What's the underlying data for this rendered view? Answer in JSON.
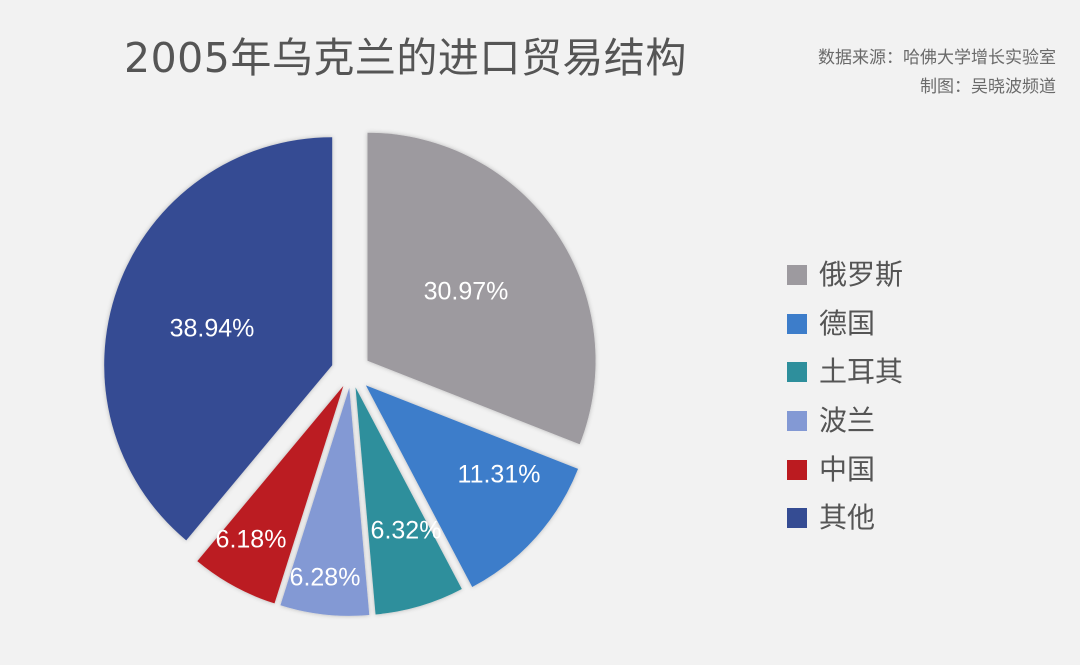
{
  "header": {
    "title": "2005年乌克兰的进口贸易结构",
    "source_line": "数据来源：哈佛大学增长实验室",
    "credit_line": "制图：吴晓波频道"
  },
  "chart_data": {
    "type": "pie",
    "title": "2005年乌克兰的进口贸易结构",
    "exploded": true,
    "start_angle_deg": 0,
    "direction": "clockwise",
    "legend_position": "right",
    "slices": [
      {
        "name": "俄罗斯",
        "value": 30.97,
        "label": "30.97%",
        "color": "#9d9a9f"
      },
      {
        "name": "德国",
        "value": 11.31,
        "label": "11.31%",
        "color": "#3d7dca"
      },
      {
        "name": "土耳其",
        "value": 6.32,
        "label": "6.32%",
        "color": "#2e8f9c"
      },
      {
        "name": "波兰",
        "value": 6.28,
        "label": "6.28%",
        "color": "#8399d4"
      },
      {
        "name": "中国",
        "value": 6.18,
        "label": "6.18%",
        "color": "#bb1b20"
      },
      {
        "name": "其他",
        "value": 38.94,
        "label": "38.94%",
        "color": "#354c93"
      }
    ]
  },
  "legend": {
    "items": [
      {
        "label": "俄罗斯",
        "color": "#9d9a9f"
      },
      {
        "label": "德国",
        "color": "#3d7dca"
      },
      {
        "label": "土耳其",
        "color": "#2e8f9c"
      },
      {
        "label": "波兰",
        "color": "#8399d4"
      },
      {
        "label": "中国",
        "color": "#bb1b20"
      },
      {
        "label": "其他",
        "color": "#354c93"
      }
    ]
  }
}
